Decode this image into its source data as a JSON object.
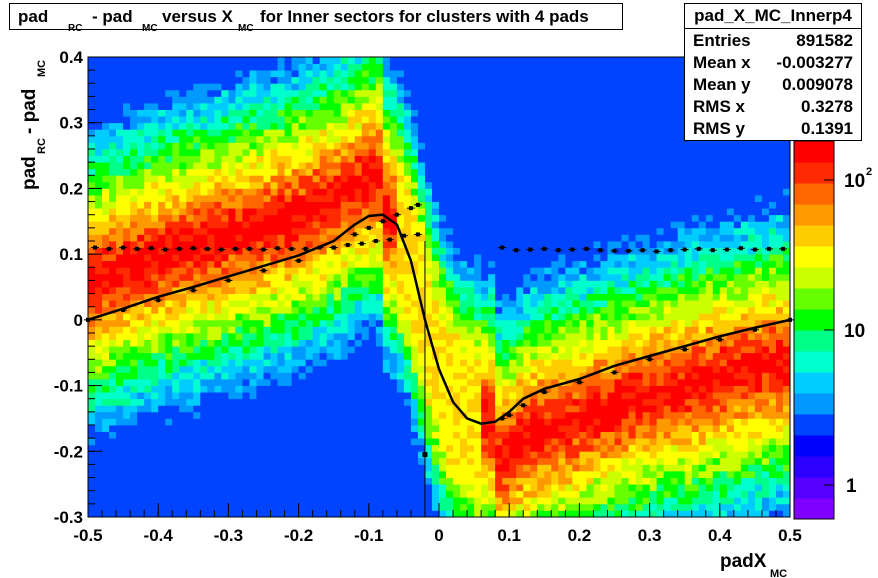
{
  "chart_data": {
    "type": "heatmap",
    "title": {
      "parts": [
        "pad",
        "RC",
        " - pad",
        "MC",
        " versus X",
        "MC",
        " for Inner sectors for clusters with 4 pads"
      ]
    },
    "xlabel": {
      "main": "padX",
      "sub": "MC"
    },
    "ylabel": {
      "main1": "pad",
      "sub1": "RC",
      "main2": " - pad",
      "sub2": "MC"
    },
    "xlim": [
      -0.5,
      0.5
    ],
    "ylim": [
      -0.3,
      0.4
    ],
    "x_ticks": [
      "-0.5",
      "-0.4",
      "-0.3",
      "-0.2",
      "-0.1",
      "0",
      "0.1",
      "0.2",
      "0.3",
      "0.4",
      "0.5"
    ],
    "y_ticks": [
      "-0.3",
      "-0.2",
      "-0.1",
      "0",
      "0.1",
      "0.2",
      "0.3",
      "0.4"
    ],
    "z_scale": "log",
    "z_ticks": [
      "1",
      "10",
      "10^2"
    ],
    "stats": {
      "name": "pad_X_MC_Innerp4",
      "rows": [
        {
          "key": "Entries",
          "value": "891582"
        },
        {
          "key": "Mean x",
          "value": "-0.003277"
        },
        {
          "key": "Mean y",
          "value": "0.009078"
        },
        {
          "key": "RMS x",
          "value": "0.3278"
        },
        {
          "key": "RMS y",
          "value": "0.1391"
        }
      ]
    },
    "profile_mean": {
      "x": [
        -0.5,
        -0.45,
        -0.4,
        -0.35,
        -0.3,
        -0.25,
        -0.2,
        -0.15,
        -0.12,
        -0.1,
        -0.08,
        -0.06,
        -0.04,
        -0.03,
        0.09,
        0.1,
        0.12,
        0.15,
        0.2,
        0.25,
        0.3,
        0.35,
        0.4,
        0.45,
        0.5
      ],
      "y": [
        0.0,
        0.015,
        0.03,
        0.045,
        0.06,
        0.075,
        0.09,
        0.11,
        0.13,
        0.14,
        0.15,
        0.16,
        0.17,
        0.175,
        -0.15,
        -0.145,
        -0.13,
        -0.11,
        -0.095,
        -0.08,
        -0.06,
        -0.045,
        -0.03,
        -0.015,
        0.0
      ]
    },
    "profile_rms": {
      "x": [
        -0.49,
        -0.47,
        -0.45,
        -0.43,
        -0.41,
        -0.39,
        -0.37,
        -0.35,
        -0.33,
        -0.31,
        -0.29,
        -0.27,
        -0.25,
        -0.23,
        -0.21,
        -0.19,
        -0.17,
        -0.15,
        -0.13,
        -0.11,
        -0.09,
        -0.07,
        -0.05,
        -0.03,
        0.09,
        0.11,
        0.13,
        0.15,
        0.17,
        0.19,
        0.21,
        0.23,
        0.25,
        0.27,
        0.29,
        0.31,
        0.33,
        0.35,
        0.37,
        0.39,
        0.41,
        0.43,
        0.45,
        0.47,
        0.49
      ],
      "y": [
        0.11,
        0.108,
        0.11,
        0.108,
        0.109,
        0.107,
        0.108,
        0.109,
        0.108,
        0.107,
        0.108,
        0.108,
        0.107,
        0.109,
        0.108,
        0.108,
        0.11,
        0.11,
        0.114,
        0.116,
        0.12,
        0.122,
        0.128,
        0.13,
        0.11,
        0.106,
        0.107,
        0.108,
        0.106,
        0.107,
        0.108,
        0.106,
        0.105,
        0.105,
        0.106,
        0.104,
        0.106,
        0.107,
        0.108,
        0.106,
        0.107,
        0.109,
        0.107,
        0.108,
        0.108
      ]
    },
    "fit_function": {
      "x": [
        -0.5,
        -0.45,
        -0.4,
        -0.35,
        -0.3,
        -0.25,
        -0.2,
        -0.15,
        -0.12,
        -0.1,
        -0.08,
        -0.06,
        -0.04,
        -0.02,
        0.0,
        0.02,
        0.04,
        0.06,
        0.08,
        0.1,
        0.12,
        0.15,
        0.2,
        0.25,
        0.3,
        0.35,
        0.4,
        0.45,
        0.5
      ],
      "y": [
        0.0,
        0.017,
        0.035,
        0.05,
        0.066,
        0.082,
        0.098,
        0.12,
        0.145,
        0.158,
        0.16,
        0.145,
        0.09,
        0.0,
        -0.075,
        -0.125,
        -0.15,
        -0.158,
        -0.155,
        -0.14,
        -0.12,
        -0.105,
        -0.09,
        -0.07,
        -0.055,
        -0.04,
        -0.025,
        -0.012,
        0.0
      ]
    },
    "outlier_point": {
      "x": -0.02,
      "y": -0.205,
      "err_low": -0.3,
      "err_high": 0.12
    }
  },
  "colors": {
    "palette": [
      "#7f00ff",
      "#5500ff",
      "#2b00ff",
      "#0000ff",
      "#0044ff",
      "#0099ff",
      "#00ccff",
      "#00ffcc",
      "#00ff88",
      "#00ff00",
      "#66ff00",
      "#ccff00",
      "#ffff00",
      "#ffcc00",
      "#ff9900",
      "#ff6600",
      "#ff2a00",
      "#ff0000"
    ],
    "line": "#000000"
  }
}
